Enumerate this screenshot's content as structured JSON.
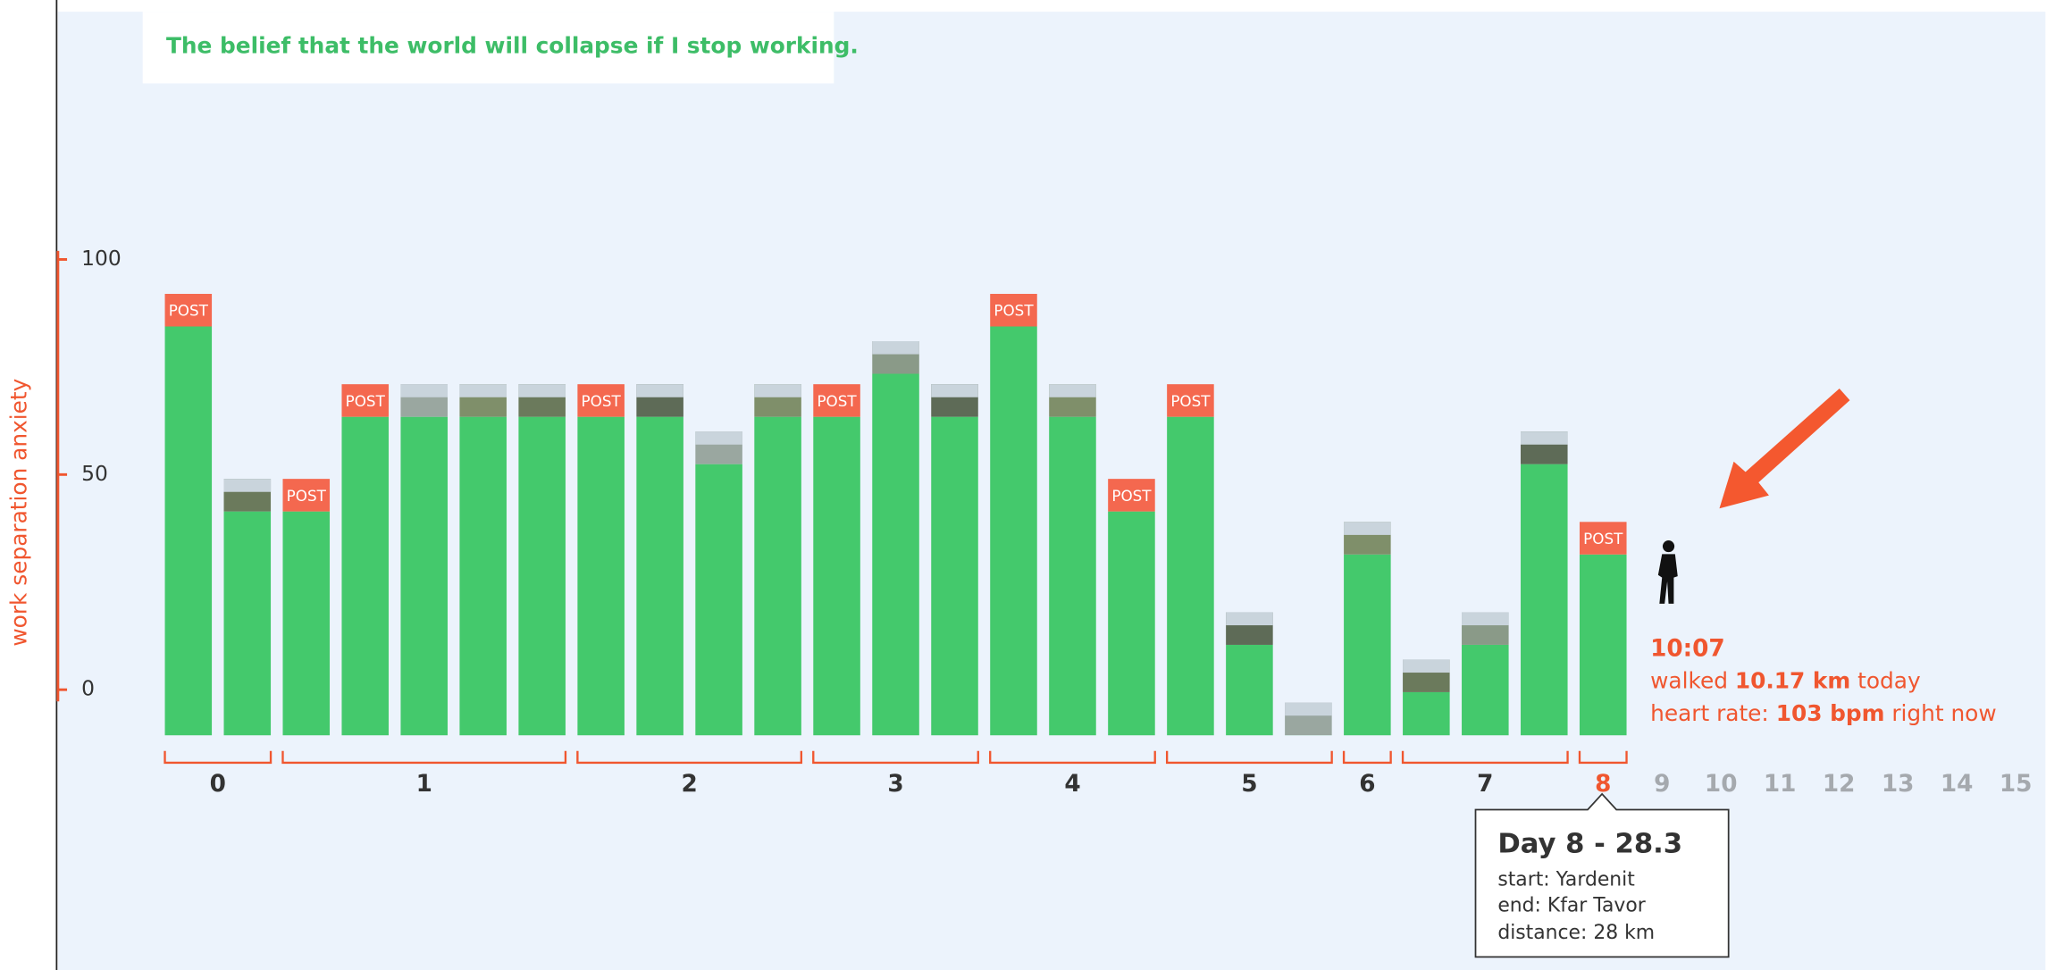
{
  "chart_data": {
    "type": "bar",
    "title": "The belief that the world will collapse if I stop working.",
    "y_label": "work separation anxiety",
    "categories": [
      "0",
      "0",
      "1",
      "1",
      "1",
      "1",
      "1",
      "2",
      "2",
      "2",
      "2",
      "3",
      "3",
      "3",
      "4",
      "4",
      "4",
      "5",
      "5",
      "5",
      "6",
      "7",
      "7",
      "7",
      "8"
    ],
    "values": [
      92,
      49,
      49,
      71,
      71,
      71,
      71,
      71,
      71,
      60,
      71,
      71,
      81,
      71,
      92,
      71,
      49,
      71,
      18,
      -3,
      39,
      7,
      18,
      60,
      39
    ],
    "caps": [
      "POST",
      null,
      "POST",
      "POST",
      null,
      null,
      null,
      "POST",
      null,
      null,
      null,
      "POST",
      null,
      null,
      "POST",
      null,
      "POST",
      "POST",
      null,
      null,
      null,
      null,
      null,
      null,
      "POST"
    ],
    "future_days": [
      "9",
      "10",
      "11",
      "12",
      "13",
      "14",
      "15"
    ],
    "color": "#44c96c",
    "cap_color": "#f4684f",
    "axis_color": "#f0562f",
    "ylim": [
      -10.6,
      102
    ],
    "yticks": [
      0,
      50,
      100
    ],
    "status": {
      "time": "10:07",
      "walked_prefix": "walked",
      "walked_value": "10.17 km",
      "walked_suffix": "today",
      "heart_prefix": "heart rate:",
      "heart_value": "103 bpm",
      "heart_suffix": "right now"
    },
    "tooltip": {
      "title": "Day 8 - 28.3",
      "start": "start: Yardenit",
      "end": "end: Kfar Tavor",
      "distance": "distance: 28 km"
    }
  }
}
